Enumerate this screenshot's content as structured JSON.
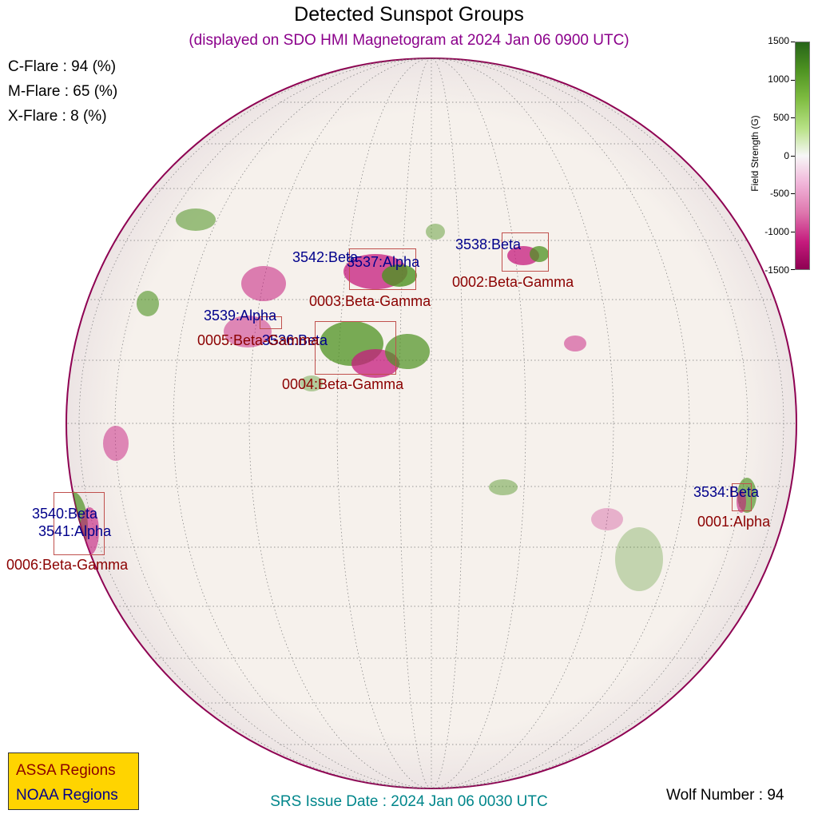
{
  "title": "Detected Sunspot Groups",
  "subtitle": "(displayed on SDO HMI Magnetogram at 2024 Jan 06 0900 UTC)",
  "flare": {
    "c": "C-Flare : 94 (%)",
    "m": "M-Flare : 65 (%)",
    "x": "X-Flare :  8 (%)"
  },
  "colorbar": {
    "label": "Field Strength (G)",
    "ticks": [
      "1500",
      "1000",
      "500",
      "0",
      "-500",
      "-1000",
      "-1500"
    ]
  },
  "regions": {
    "noaa": [
      "3542:Beta",
      "3537:Alpha",
      "3538:Beta",
      "3539:Alpha",
      "3536:Beta",
      "3534:Beta",
      "3540:Beta",
      "3541:Alpha"
    ],
    "assa": [
      "0003:Beta-Gamma",
      "0002:Beta-Gamma",
      "0005:Beta-Gamma",
      "0004:Beta-Gamma",
      "0001:Alpha",
      "0006:Beta-Gamma"
    ]
  },
  "legend": {
    "assa": "ASSA Regions",
    "noaa": "NOAA Regions"
  },
  "srs": "SRS Issue Date : 2024 Jan 06 0030 UTC",
  "wolf": "Wolf Number : 94",
  "colors": {
    "positive": "#4d9221",
    "negative": "#c51b7d",
    "noaa": "#00008b",
    "assa": "#8b0000",
    "legend_bg": "#ffd400"
  }
}
